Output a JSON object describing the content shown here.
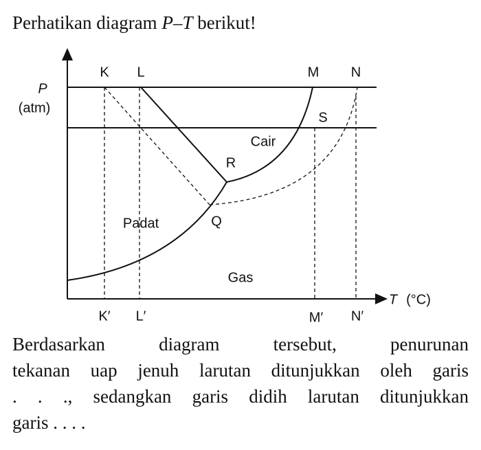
{
  "question": {
    "intro": [
      "Perhatikan diagram ",
      "P",
      "–",
      "T",
      " berikut!"
    ],
    "body_lines": [
      "Berdasarkan diagram tersebut, penurunan",
      "tekanan uap jenuh larutan ditunjukkan oleh garis",
      ". . ., sedangkan garis didih larutan ditunjukkan",
      "garis . . . ."
    ]
  },
  "diagram": {
    "y_axis": {
      "symbol": "P",
      "unit": "(atm)"
    },
    "x_axis": {
      "symbol": "T",
      "unit": "(°C)"
    },
    "top_labels": [
      "K",
      "L",
      "M",
      "N"
    ],
    "bottom_labels": [
      "K′",
      "L′",
      "M′",
      "N′"
    ],
    "points": {
      "S": "S",
      "R": "R",
      "Q": "Q"
    },
    "regions": {
      "liquid": "Cair",
      "solid": "Padat",
      "gas": "Gas"
    }
  }
}
